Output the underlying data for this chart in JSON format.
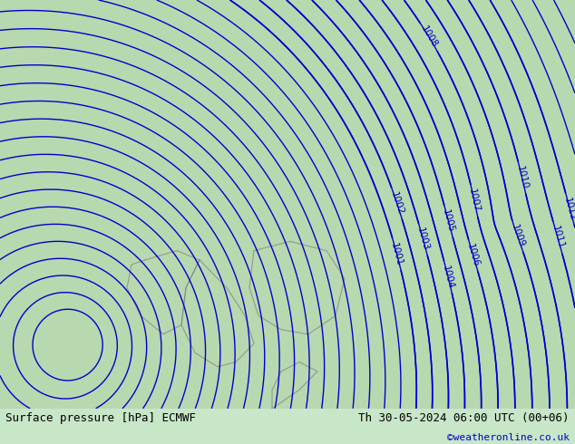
{
  "title_left": "Surface pressure [hPa] ECMWF",
  "title_right": "Th 30-05-2024 06:00 UTC (00+06)",
  "credit": "©weatheronline.co.uk",
  "bg_color": "#c8e6c8",
  "map_bg_sea": "#e8e8e8",
  "map_bg_land_green": "#a8d4a8",
  "contour_color": "#0000cc",
  "border_color": "#808080",
  "label_color": "#0000cc",
  "bottom_bar_color": "#d8ecd8",
  "bottom_text_color": "#000000",
  "credit_color": "#0000cc",
  "figwidth": 6.34,
  "figheight": 4.9,
  "dpi": 100
}
